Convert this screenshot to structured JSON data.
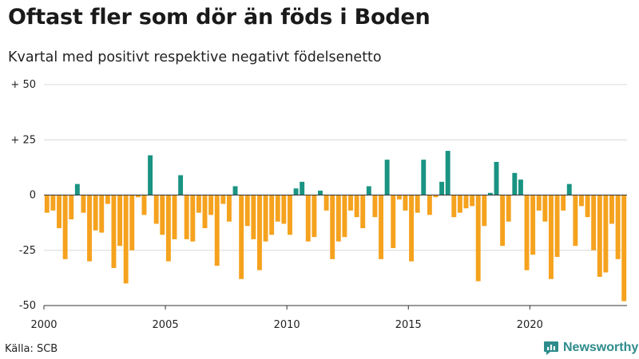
{
  "title": "Oftast fler som dör än föds i Boden",
  "subtitle": "Kvartal med positivt respektive negativt födelsenetto",
  "source": "Källa: SCB",
  "brand": "Newsworthy",
  "icon": "newsworthy-logo-icon",
  "colors": {
    "positive": "#1a9482",
    "negative": "#f5a21e",
    "grid": "#d9d9d9",
    "brand": "#2e8b8b"
  },
  "chart_data": {
    "type": "bar",
    "title": "Oftast fler som dör än föds i Boden",
    "subtitle": "Kvartal med positivt respektive negativt födelsenetto",
    "xlabel": "",
    "ylabel": "",
    "ylim": [
      -50,
      50
    ],
    "y_ticks": [
      50,
      25,
      0,
      -25,
      -50
    ],
    "y_tick_labels": [
      "+ 50",
      "+ 25",
      "0",
      "-25",
      "-50"
    ],
    "x_start": 2000,
    "x_ticks": [
      2000,
      2005,
      2010,
      2015,
      2020
    ],
    "x_tick_labels": [
      "2000",
      "2005",
      "2010",
      "2015",
      "2020"
    ],
    "grid": true,
    "categories": [
      "2000 K1",
      "2000 K2",
      "2000 K3",
      "2000 K4",
      "2001 K1",
      "2001 K2",
      "2001 K3",
      "2001 K4",
      "2002 K1",
      "2002 K2",
      "2002 K3",
      "2002 K4",
      "2003 K1",
      "2003 K2",
      "2003 K3",
      "2003 K4",
      "2004 K1",
      "2004 K2",
      "2004 K3",
      "2004 K4",
      "2005 K1",
      "2005 K2",
      "2005 K3",
      "2005 K4",
      "2006 K1",
      "2006 K2",
      "2006 K3",
      "2006 K4",
      "2007 K1",
      "2007 K2",
      "2007 K3",
      "2007 K4",
      "2008 K1",
      "2008 K2",
      "2008 K3",
      "2008 K4",
      "2009 K1",
      "2009 K2",
      "2009 K3",
      "2009 K4",
      "2010 K1",
      "2010 K2",
      "2010 K3",
      "2010 K4",
      "2011 K1",
      "2011 K2",
      "2011 K3",
      "2011 K4",
      "2012 K1",
      "2012 K2",
      "2012 K3",
      "2012 K4",
      "2013 K1",
      "2013 K2",
      "2013 K3",
      "2013 K4",
      "2014 K1",
      "2014 K2",
      "2014 K3",
      "2014 K4",
      "2015 K1",
      "2015 K2",
      "2015 K3",
      "2015 K4",
      "2016 K1",
      "2016 K2",
      "2016 K3",
      "2016 K4",
      "2017 K1",
      "2017 K2",
      "2017 K3",
      "2017 K4",
      "2018 K1",
      "2018 K2",
      "2018 K3",
      "2018 K4",
      "2019 K1",
      "2019 K2",
      "2019 K3",
      "2019 K4",
      "2020 K1",
      "2020 K2",
      "2020 K3",
      "2020 K4",
      "2021 K1",
      "2021 K2",
      "2021 K3",
      "2021 K4",
      "2022 K1",
      "2022 K2",
      "2022 K3",
      "2022 K4",
      "2023 K1",
      "2023 K2",
      "2023 K3",
      "2023 K4"
    ],
    "values": [
      -8,
      -7,
      -15,
      -29,
      -11,
      5,
      -8,
      -30,
      -16,
      -17,
      -4,
      -33,
      -23,
      -40,
      -25,
      -1,
      -9,
      18,
      -13,
      -18,
      -30,
      -20,
      9,
      -20,
      -21,
      -8,
      -15,
      -9,
      -32,
      -4,
      -12,
      4,
      -38,
      -14,
      -20,
      -34,
      -21,
      -18,
      -12,
      -13,
      -18,
      3,
      6,
      -21,
      -19,
      2,
      -7,
      -29,
      -21,
      -19,
      -7,
      -10,
      -15,
      4,
      -10,
      -29,
      16,
      -24,
      -2,
      -7,
      -30,
      -8,
      16,
      -9,
      -1,
      6,
      20,
      -10,
      -8,
      -6,
      -5,
      -39,
      -14,
      1,
      15,
      -23,
      -12,
      10,
      7,
      -34,
      -27,
      -7,
      -12,
      -38,
      -28,
      -7,
      5,
      -23,
      -5,
      -10,
      -25,
      -37,
      -35,
      -13,
      -29,
      -48
    ]
  }
}
